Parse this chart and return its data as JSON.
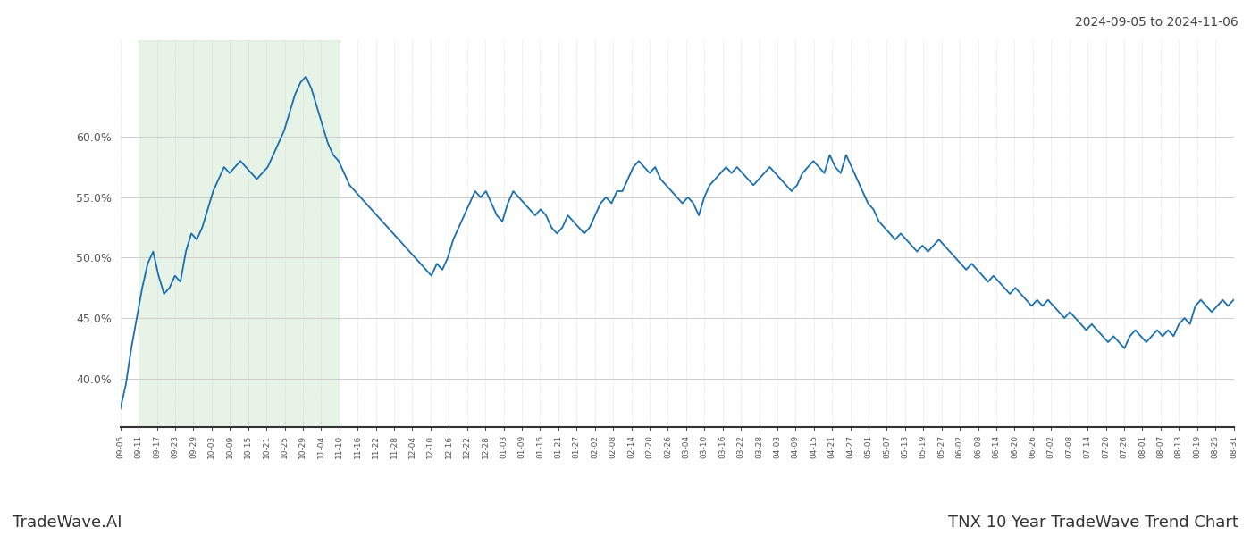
{
  "title_top_right": "2024-09-05 to 2024-11-06",
  "title_bottom_right": "TNX 10 Year TradeWave Trend Chart",
  "title_bottom_left": "TradeWave.AI",
  "line_color": "#1a6faf",
  "line_width": 1.3,
  "highlight_color": "#c8e6c9",
  "highlight_alpha": 0.45,
  "background_color": "#ffffff",
  "grid_color": "#cccccc",
  "ylim": [
    36.0,
    68.0
  ],
  "yticks": [
    40.0,
    45.0,
    50.0,
    55.0,
    60.0
  ],
  "x_labels": [
    "09-05",
    "09-11",
    "09-17",
    "09-23",
    "09-29",
    "10-03",
    "10-09",
    "10-15",
    "10-21",
    "10-25",
    "10-29",
    "11-04",
    "11-10",
    "11-16",
    "11-22",
    "11-28",
    "12-04",
    "12-10",
    "12-16",
    "12-22",
    "12-28",
    "01-03",
    "01-09",
    "01-15",
    "01-21",
    "01-27",
    "02-02",
    "02-08",
    "02-14",
    "02-20",
    "02-26",
    "03-04",
    "03-10",
    "03-16",
    "03-22",
    "03-28",
    "04-03",
    "04-09",
    "04-15",
    "04-21",
    "04-27",
    "05-01",
    "05-07",
    "05-13",
    "05-19",
    "05-27",
    "06-02",
    "06-08",
    "06-14",
    "06-20",
    "06-26",
    "07-02",
    "07-08",
    "07-14",
    "07-20",
    "07-26",
    "08-01",
    "08-07",
    "08-13",
    "08-19",
    "08-25",
    "08-31"
  ],
  "highlight_start_label": "09-11",
  "highlight_end_label": "11-10",
  "values": [
    37.5,
    39.5,
    42.5,
    45.0,
    47.5,
    49.5,
    50.5,
    48.5,
    47.0,
    47.5,
    48.5,
    48.0,
    50.5,
    52.0,
    51.5,
    52.5,
    54.0,
    55.5,
    56.5,
    57.5,
    57.0,
    57.5,
    58.0,
    57.5,
    57.0,
    56.5,
    57.0,
    57.5,
    58.5,
    59.5,
    60.5,
    62.0,
    63.5,
    64.5,
    65.0,
    64.0,
    62.5,
    61.0,
    59.5,
    58.5,
    58.0,
    57.0,
    56.0,
    55.5,
    55.0,
    54.5,
    54.0,
    53.5,
    53.0,
    52.5,
    52.0,
    51.5,
    51.0,
    50.5,
    50.0,
    49.5,
    49.0,
    48.5,
    49.5,
    49.0,
    50.0,
    51.5,
    52.5,
    53.5,
    54.5,
    55.5,
    55.0,
    55.5,
    54.5,
    53.5,
    53.0,
    54.5,
    55.5,
    55.0,
    54.5,
    54.0,
    53.5,
    54.0,
    53.5,
    52.5,
    52.0,
    52.5,
    53.5,
    53.0,
    52.5,
    52.0,
    52.5,
    53.5,
    54.5,
    55.0,
    54.5,
    55.5,
    55.5,
    56.5,
    57.5,
    58.0,
    57.5,
    57.0,
    57.5,
    56.5,
    56.0,
    55.5,
    55.0,
    54.5,
    55.0,
    54.5,
    53.5,
    55.0,
    56.0,
    56.5,
    57.0,
    57.5,
    57.0,
    57.5,
    57.0,
    56.5,
    56.0,
    56.5,
    57.0,
    57.5,
    57.0,
    56.5,
    56.0,
    55.5,
    56.0,
    57.0,
    57.5,
    58.0,
    57.5,
    57.0,
    58.5,
    57.5,
    57.0,
    58.5,
    57.5,
    56.5,
    55.5,
    54.5,
    54.0,
    53.0,
    52.5,
    52.0,
    51.5,
    52.0,
    51.5,
    51.0,
    50.5,
    51.0,
    50.5,
    51.0,
    51.5,
    51.0,
    50.5,
    50.0,
    49.5,
    49.0,
    49.5,
    49.0,
    48.5,
    48.0,
    48.5,
    48.0,
    47.5,
    47.0,
    47.5,
    47.0,
    46.5,
    46.0,
    46.5,
    46.0,
    46.5,
    46.0,
    45.5,
    45.0,
    45.5,
    45.0,
    44.5,
    44.0,
    44.5,
    44.0,
    43.5,
    43.0,
    43.5,
    43.0,
    42.5,
    43.5,
    44.0,
    43.5,
    43.0,
    43.5,
    44.0,
    43.5,
    44.0,
    43.5,
    44.5,
    45.0,
    44.5,
    46.0,
    46.5,
    46.0,
    45.5,
    46.0,
    46.5,
    46.0,
    46.5
  ]
}
